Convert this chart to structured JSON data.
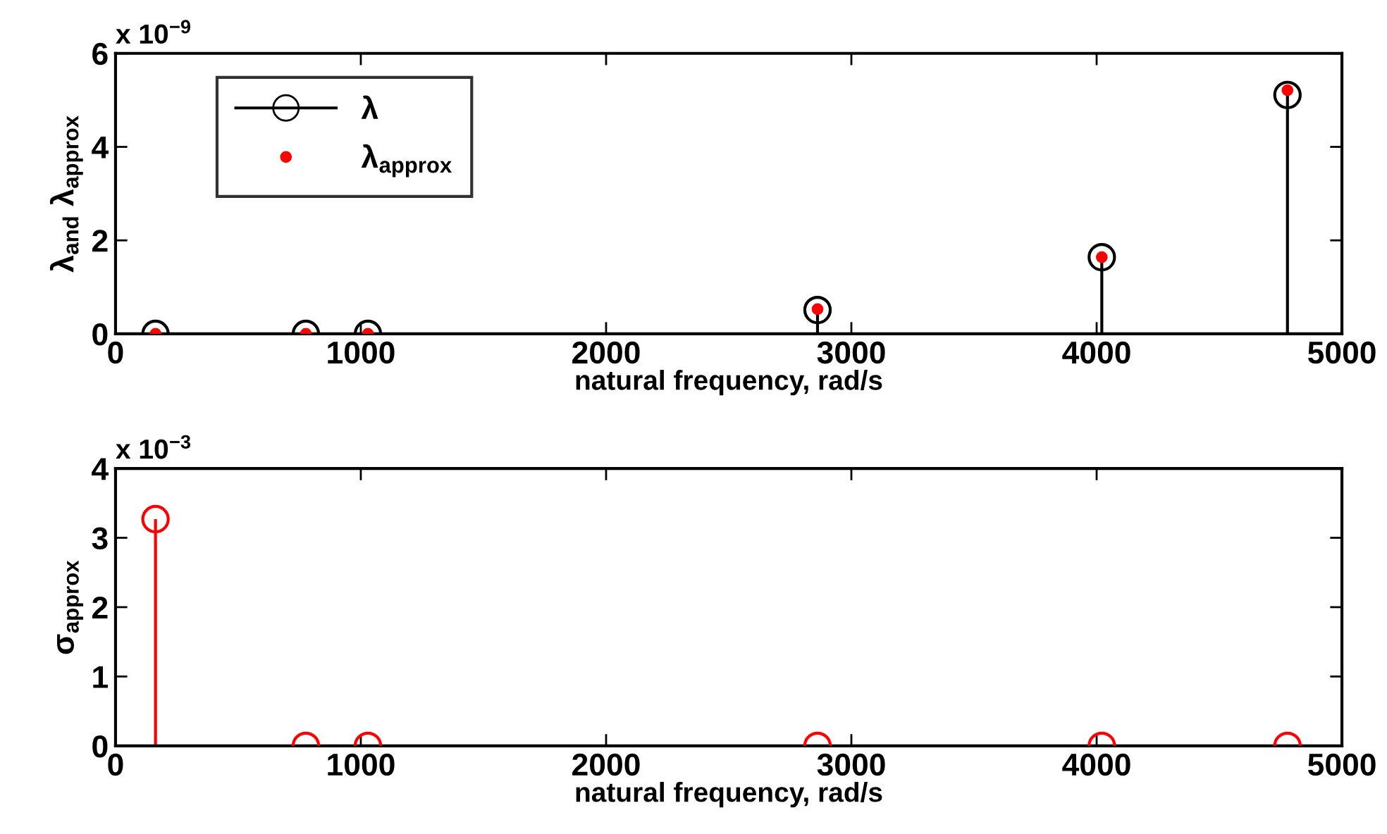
{
  "chart_data": [
    {
      "type": "lollipop",
      "xlabel": "natural frequency, rad/s",
      "ylabel": "λ$_{and}$ λ$_{approx}$",
      "annotations": [
        "x 10$^{−9}$"
      ],
      "xlim": [
        0,
        5000
      ],
      "xticks": [
        0,
        1000,
        2000,
        3000,
        4000,
        5000
      ],
      "ylim": [
        0,
        6
      ],
      "yticks": [
        0,
        2,
        4,
        6
      ],
      "grid": false,
      "legend": "top left",
      "series": [
        {
          "name": "λ",
          "color": "#000000",
          "marker": "circle",
          "x": [
            163,
            776,
            1029,
            2862,
            4021,
            4778
          ],
          "values": [
            0,
            0,
            0,
            0.51,
            1.64,
            5.11
          ]
        },
        {
          "name": "λ$_{approx}$",
          "type": "scatter",
          "color": "#ff0000",
          "marker": "circle",
          "x": [
            163,
            776,
            1029,
            2862,
            4021,
            4778
          ],
          "values": [
            0,
            0,
            0,
            0.53,
            1.64,
            5.21
          ]
        }
      ]
    },
    {
      "type": "lollipop",
      "xlabel": "natural frequency, rad/s",
      "ylabel": "σ$_{approx}$",
      "annotations": [
        "x 10$^{−3}$"
      ],
      "xlim": [
        0,
        5000
      ],
      "xticks": [
        0,
        1000,
        2000,
        3000,
        4000,
        5000
      ],
      "ylim": [
        0,
        4
      ],
      "yticks": [
        0,
        1,
        2,
        3,
        4
      ],
      "grid": false,
      "legend": false,
      "series": [
        {
          "color": "#ff0000",
          "marker": "circle",
          "x": [
            163,
            776,
            1029,
            2862,
            4021,
            4778
          ],
          "values": [
            3.27,
            0,
            0,
            0,
            0,
            0
          ]
        }
      ]
    }
  ]
}
